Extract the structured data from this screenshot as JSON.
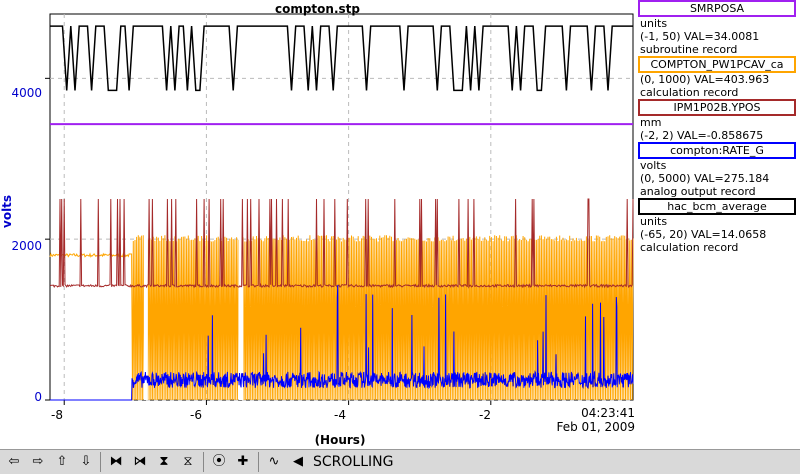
{
  "title": "compton.stp",
  "y_axis": {
    "label": "volts",
    "ticks": [
      "4000",
      "2000",
      "0"
    ]
  },
  "x_axis": {
    "label": "(Hours)",
    "ticks": [
      "-8",
      "-6",
      "-4",
      "-2"
    ],
    "current_time": "04:23:41",
    "current_date": "Feb 01, 2009"
  },
  "legend": [
    {
      "name": "SMRPOSA",
      "color": "#a020f0",
      "units": "units",
      "range_val": "(-1, 50) VAL=34.0081",
      "record_type": "subroutine record"
    },
    {
      "name": "COMPTON_PW1PCAV_ca",
      "color": "#ffa500",
      "units": "",
      "range_val": "(0, 1000) VAL=403.963",
      "record_type": "calculation record"
    },
    {
      "name": "IPM1P02B.YPOS",
      "color": "#a52a2a",
      "units": "mm",
      "range_val": "(-2, 2) VAL=-0.858675",
      "record_type": ""
    },
    {
      "name": "compton:RATE_G",
      "color": "#0000ff",
      "units": "volts",
      "range_val": "(0, 5000) VAL=275.184",
      "record_type": "analog output record"
    },
    {
      "name": "hac_bcm_average",
      "color": "#000000",
      "units": "units",
      "range_val": "(-65, 20) VAL=14.0658",
      "record_type": "calculation record"
    }
  ],
  "toolbar": {
    "status": "SCROLLING",
    "icons": [
      "arrow-left-icon",
      "arrow-right-icon",
      "arrow-up-icon",
      "arrow-down-icon",
      "expand-horizontal-icon",
      "compress-horizontal-icon",
      "expand-vertical-icon",
      "compress-vertical-icon",
      "record-icon",
      "add-icon",
      "wave-icon",
      "back-icon"
    ],
    "glyphs": [
      "⇦",
      "⇨",
      "⇧",
      "⇩",
      "⧓",
      "⧒",
      "⧗",
      "⧖",
      "⦿",
      "✚",
      "∿",
      "◀"
    ]
  },
  "chart_data": {
    "type": "line",
    "title": "compton.stp",
    "xlabel": "(Hours)",
    "ylabel": "volts",
    "xlim": [
      -8.2,
      0
    ],
    "ylim": [
      0,
      4800
    ],
    "x_ticks": [
      -8,
      -6,
      -4,
      -2
    ],
    "y_ticks": [
      0,
      2000,
      4000
    ],
    "grid": true,
    "series": [
      {
        "name": "SMRPOSA",
        "color": "#a020f0",
        "kind": "flat",
        "value": 3430
      },
      {
        "name": "hac_bcm_average",
        "color": "#000000",
        "kind": "telegraph",
        "high": 4650,
        "low": 3850
      },
      {
        "name": "COMPTON_PW1PCAV_ca",
        "color": "#ffa500",
        "kind": "band",
        "before": 1800,
        "band_low": 0,
        "band_high": 2050,
        "start_x": -7.05
      },
      {
        "name": "IPM1P02B.YPOS",
        "color": "#a52a2a",
        "kind": "spiky",
        "base": 1420,
        "spike": 2500
      },
      {
        "name": "compton:RATE_G",
        "color": "#0000ff",
        "kind": "noisy",
        "before": 0,
        "base": 250,
        "start_x": -7.05
      }
    ]
  }
}
